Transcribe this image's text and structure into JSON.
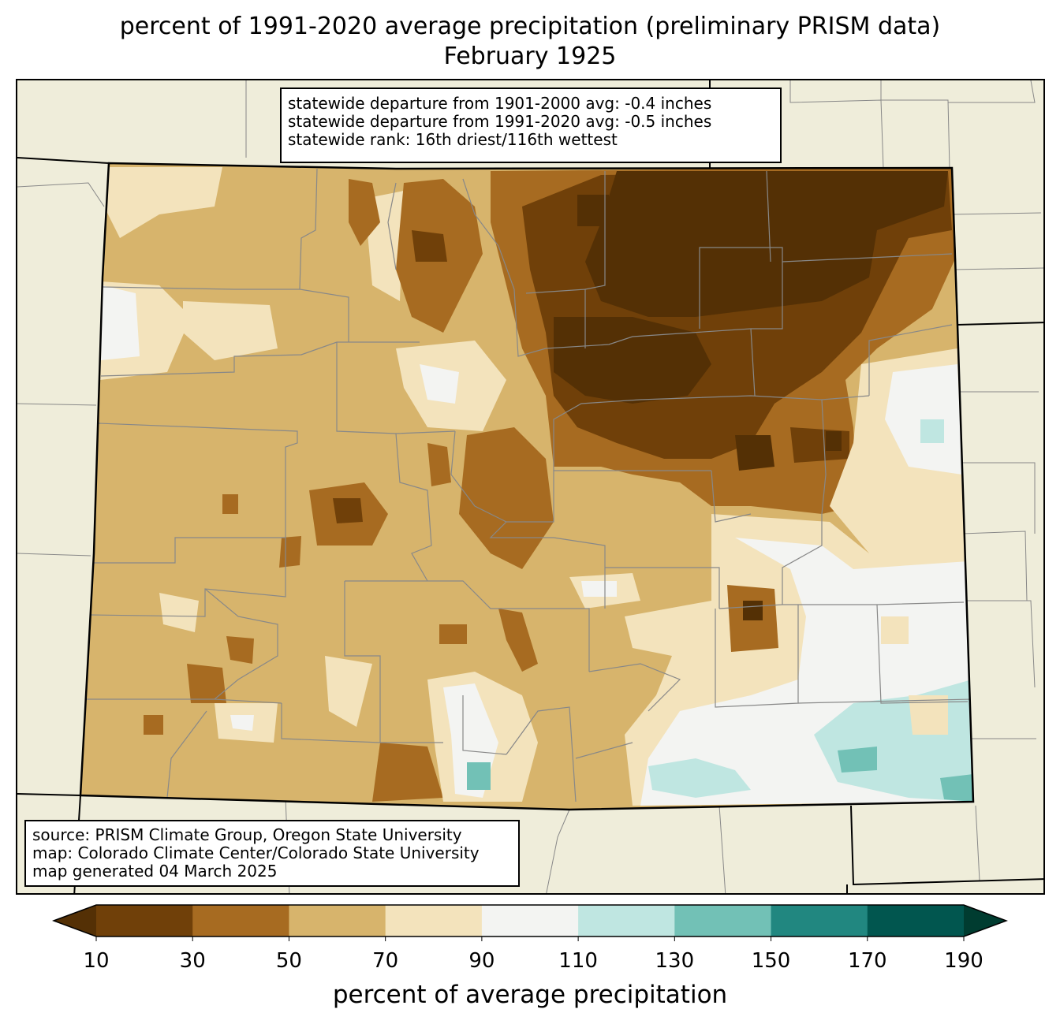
{
  "title": {
    "line1": "percent of 1991-2020 average precipitation (preliminary PRISM data)",
    "line2": "February 1925"
  },
  "stats": {
    "line1": "statewide departure from 1901-2000 avg: -0.4 inches",
    "line2": "statewide departure from 1991-2020 avg: -0.5 inches",
    "line3": "statewide rank: 16th driest/116th wettest"
  },
  "source": {
    "line1": "source: PRISM Climate Group, Oregon State University",
    "line2": "map: Colorado Climate Center/Colorado State University",
    "line3": "map generated 04 March 2025"
  },
  "colorbar": {
    "label": "percent of average precipitation",
    "ticks": [
      "10",
      "30",
      "50",
      "70",
      "90",
      "110",
      "130",
      "150",
      "170",
      "190"
    ],
    "bins": [
      {
        "range": "<10",
        "color": "#543005"
      },
      {
        "range": "10-30",
        "color": "#704009"
      },
      {
        "range": "30-50",
        "color": "#a76b21"
      },
      {
        "range": "50-70",
        "color": "#d7b46c"
      },
      {
        "range": "70-90",
        "color": "#f3e3bc"
      },
      {
        "range": "90-110",
        "color": "#f3f4f2"
      },
      {
        "range": "110-130",
        "color": "#bfe6e1"
      },
      {
        "range": "130-150",
        "color": "#72c1b6"
      },
      {
        "range": "150-170",
        "color": "#218780"
      },
      {
        "range": "170-190",
        "color": "#01564f"
      },
      {
        "range": ">190",
        "color": "#003c30"
      }
    ]
  },
  "map": {
    "background_color": "#efedda",
    "state_border_color": "#000000",
    "county_border_color": "#888888"
  }
}
